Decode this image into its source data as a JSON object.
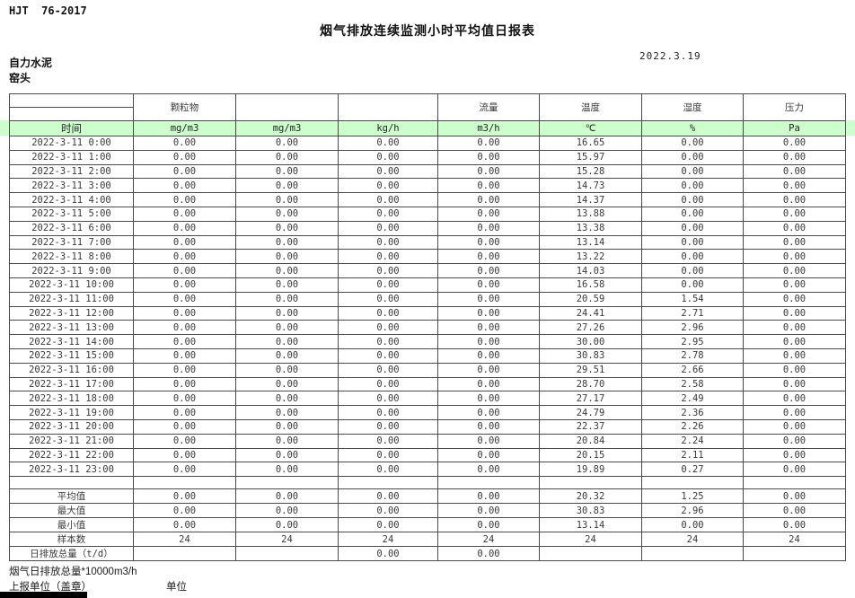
{
  "page": {
    "doc_code": "HJT  76-2017",
    "title": "烟气排放连续监测小时平均值日报表",
    "date": "2022.3.19",
    "company": "自力水泥",
    "location": "窑头"
  },
  "table": {
    "group_headers": [
      "",
      "颗粒物",
      "",
      "",
      "流量",
      "温度",
      "湿度",
      "压力"
    ],
    "unit_row": [
      "时间",
      "mg/m3",
      "mg/m3",
      "kg/h",
      "m3/h",
      "℃",
      "%",
      "Pa"
    ],
    "rows": [
      {
        "time": "2022-3-11 0:00",
        "values": [
          "0.00",
          "0.00",
          "0.00",
          "0.00",
          "16.65",
          "0.00",
          "0.00"
        ]
      },
      {
        "time": "2022-3-11 1:00",
        "values": [
          "0.00",
          "0.00",
          "0.00",
          "0.00",
          "15.97",
          "0.00",
          "0.00"
        ]
      },
      {
        "time": "2022-3-11 2:00",
        "values": [
          "0.00",
          "0.00",
          "0.00",
          "0.00",
          "15.28",
          "0.00",
          "0.00"
        ]
      },
      {
        "time": "2022-3-11 3:00",
        "values": [
          "0.00",
          "0.00",
          "0.00",
          "0.00",
          "14.73",
          "0.00",
          "0.00"
        ]
      },
      {
        "time": "2022-3-11 4:00",
        "values": [
          "0.00",
          "0.00",
          "0.00",
          "0.00",
          "14.37",
          "0.00",
          "0.00"
        ]
      },
      {
        "time": "2022-3-11 5:00",
        "values": [
          "0.00",
          "0.00",
          "0.00",
          "0.00",
          "13.88",
          "0.00",
          "0.00"
        ]
      },
      {
        "time": "2022-3-11 6:00",
        "values": [
          "0.00",
          "0.00",
          "0.00",
          "0.00",
          "13.38",
          "0.00",
          "0.00"
        ]
      },
      {
        "time": "2022-3-11 7:00",
        "values": [
          "0.00",
          "0.00",
          "0.00",
          "0.00",
          "13.14",
          "0.00",
          "0.00"
        ]
      },
      {
        "time": "2022-3-11 8:00",
        "values": [
          "0.00",
          "0.00",
          "0.00",
          "0.00",
          "13.22",
          "0.00",
          "0.00"
        ]
      },
      {
        "time": "2022-3-11 9:00",
        "values": [
          "0.00",
          "0.00",
          "0.00",
          "0.00",
          "14.03",
          "0.00",
          "0.00"
        ]
      },
      {
        "time": "2022-3-11 10:00",
        "values": [
          "0.00",
          "0.00",
          "0.00",
          "0.00",
          "16.58",
          "0.00",
          "0.00"
        ]
      },
      {
        "time": "2022-3-11 11:00",
        "values": [
          "0.00",
          "0.00",
          "0.00",
          "0.00",
          "20.59",
          "1.54",
          "0.00"
        ]
      },
      {
        "time": "2022-3-11 12:00",
        "values": [
          "0.00",
          "0.00",
          "0.00",
          "0.00",
          "24.41",
          "2.71",
          "0.00"
        ]
      },
      {
        "time": "2022-3-11 13:00",
        "values": [
          "0.00",
          "0.00",
          "0.00",
          "0.00",
          "27.26",
          "2.96",
          "0.00"
        ]
      },
      {
        "time": "2022-3-11 14:00",
        "values": [
          "0.00",
          "0.00",
          "0.00",
          "0.00",
          "30.00",
          "2.95",
          "0.00"
        ]
      },
      {
        "time": "2022-3-11 15:00",
        "values": [
          "0.00",
          "0.00",
          "0.00",
          "0.00",
          "30.83",
          "2.78",
          "0.00"
        ]
      },
      {
        "time": "2022-3-11 16:00",
        "values": [
          "0.00",
          "0.00",
          "0.00",
          "0.00",
          "29.51",
          "2.66",
          "0.00"
        ]
      },
      {
        "time": "2022-3-11 17:00",
        "values": [
          "0.00",
          "0.00",
          "0.00",
          "0.00",
          "28.70",
          "2.58",
          "0.00"
        ]
      },
      {
        "time": "2022-3-11 18:00",
        "values": [
          "0.00",
          "0.00",
          "0.00",
          "0.00",
          "27.17",
          "2.49",
          "0.00"
        ]
      },
      {
        "time": "2022-3-11 19:00",
        "values": [
          "0.00",
          "0.00",
          "0.00",
          "0.00",
          "24.79",
          "2.36",
          "0.00"
        ]
      },
      {
        "time": "2022-3-11 20:00",
        "values": [
          "0.00",
          "0.00",
          "0.00",
          "0.00",
          "22.37",
          "2.26",
          "0.00"
        ]
      },
      {
        "time": "2022-3-11 21:00",
        "values": [
          "0.00",
          "0.00",
          "0.00",
          "0.00",
          "20.84",
          "2.24",
          "0.00"
        ]
      },
      {
        "time": "2022-3-11 22:00",
        "values": [
          "0.00",
          "0.00",
          "0.00",
          "0.00",
          "20.15",
          "2.11",
          "0.00"
        ]
      },
      {
        "time": "2022-3-11 23:00",
        "values": [
          "0.00",
          "0.00",
          "0.00",
          "0.00",
          "19.89",
          "0.27",
          "0.00"
        ]
      }
    ],
    "summary": [
      {
        "label": "平均值",
        "values": [
          "0.00",
          "0.00",
          "0.00",
          "0.00",
          "20.32",
          "1.25",
          "0.00"
        ]
      },
      {
        "label": "最大值",
        "values": [
          "0.00",
          "0.00",
          "0.00",
          "0.00",
          "30.83",
          "2.96",
          "0.00"
        ]
      },
      {
        "label": "最小值",
        "values": [
          "0.00",
          "0.00",
          "0.00",
          "0.00",
          "13.14",
          "0.00",
          "0.00"
        ]
      },
      {
        "label": "样本数",
        "values": [
          "24",
          "24",
          "24",
          "24",
          "24",
          "24",
          "24"
        ]
      },
      {
        "label": "日排放总量（t/d）",
        "values": [
          "",
          "",
          "0.00",
          "0.00",
          "",
          "",
          ""
        ]
      }
    ]
  },
  "footer": {
    "note": "烟气日排放总量*10000m3/h",
    "report_unit_label": "上报单位（盖章）",
    "unit_label": "单位"
  },
  "colors": {
    "unit_band_green": "#ccffcc",
    "grid_line": "#4a4a4a"
  }
}
